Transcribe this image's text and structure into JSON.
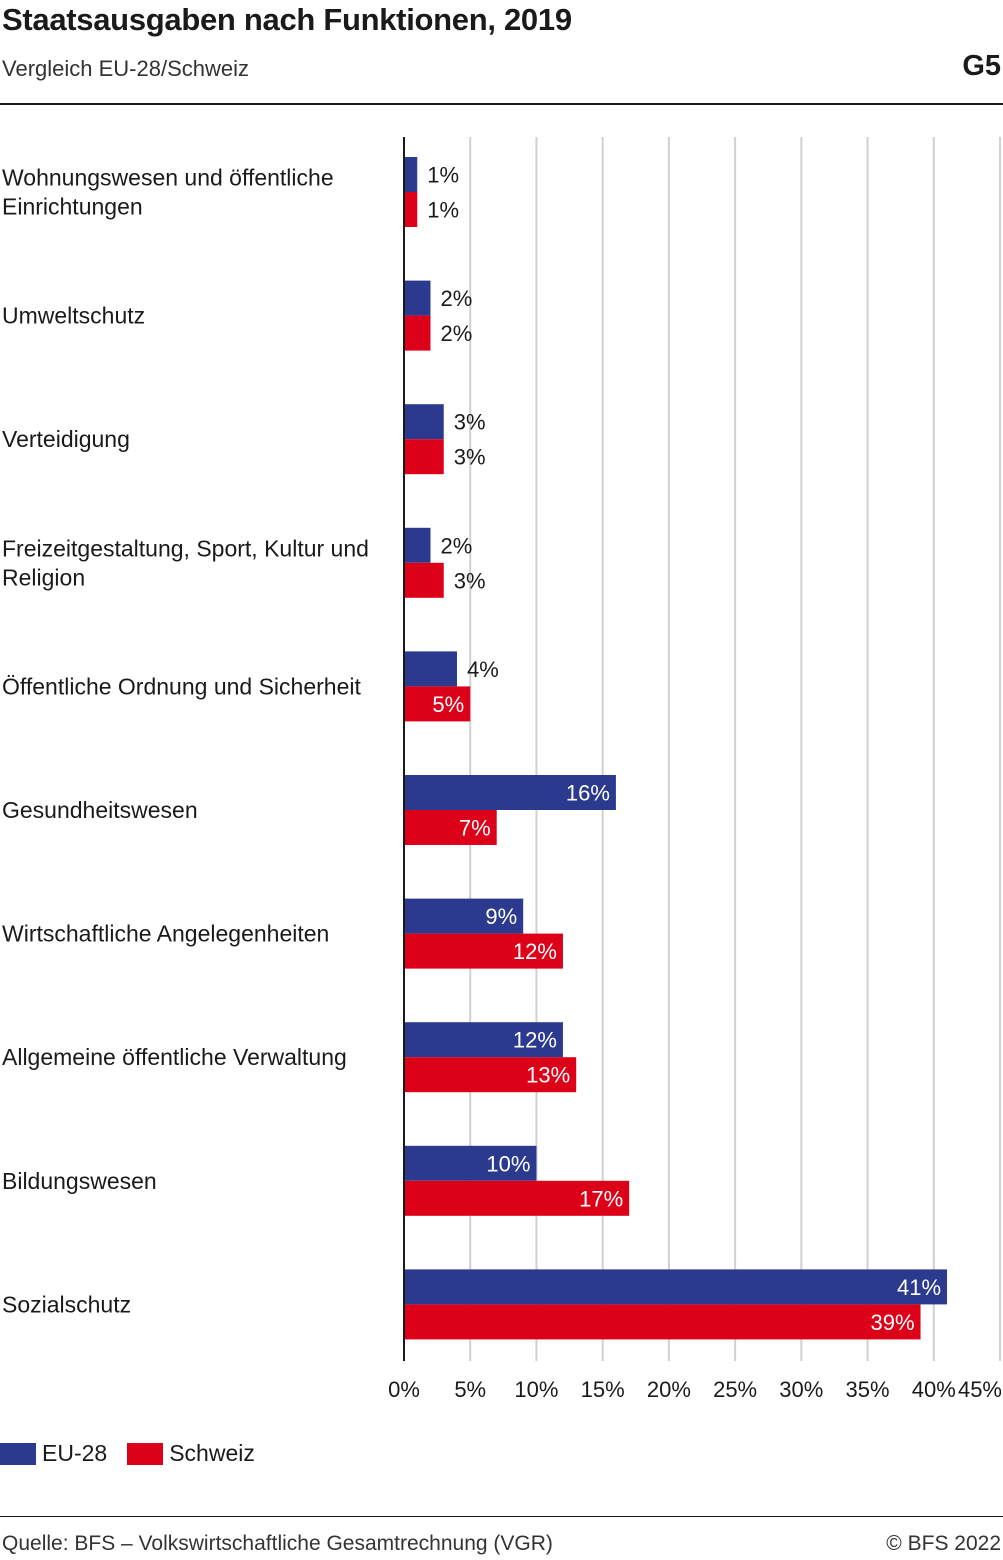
{
  "header": {
    "title": "Staatsausgaben nach Funktionen, 2019",
    "subtitle": "Vergleich EU-28/Schweiz",
    "figure_number": "G5"
  },
  "footer": {
    "source": "Quelle: BFS – Volkswirtschaftliche Gesamtrechnung (VGR)",
    "copyright": "© BFS 2022"
  },
  "colors": {
    "eu": "#2b3a8f",
    "ch": "#dc0018",
    "grid": "#d0d0d0",
    "axis": "#1a1a1a"
  },
  "chart_data": {
    "type": "bar",
    "orientation": "horizontal",
    "title": "Staatsausgaben nach Funktionen, 2019",
    "subtitle": "Vergleich EU-28/Schweiz",
    "categories": [
      [
        "Wohnungswesen und öffentliche",
        "Einrichtungen"
      ],
      [
        "Umweltschutz"
      ],
      [
        "Verteidigung"
      ],
      [
        "Freizeitgestaltung, Sport, Kultur und",
        "Religion"
      ],
      [
        "Öffentliche Ordnung und Sicherheit"
      ],
      [
        "Gesundheitswesen"
      ],
      [
        "Wirtschaftliche Angelegenheiten"
      ],
      [
        "Allgemeine öffentliche Verwaltung"
      ],
      [
        "Bildungswesen"
      ],
      [
        "Sozialschutz"
      ]
    ],
    "series": [
      {
        "name": "EU-28",
        "values": [
          1,
          2,
          3,
          2,
          4,
          16,
          9,
          12,
          10,
          41
        ],
        "labels": [
          "1%",
          "2%",
          "3%",
          "2%",
          "4%",
          "16%",
          "9%",
          "12%",
          "10%",
          "41%"
        ]
      },
      {
        "name": "Schweiz",
        "values": [
          1,
          2,
          3,
          3,
          5,
          7,
          12,
          13,
          17,
          39
        ],
        "labels": [
          "1%",
          "2%",
          "3%",
          "3%",
          "5%",
          "7%",
          "12%",
          "13%",
          "17%",
          "39%"
        ]
      }
    ],
    "xlim": [
      0,
      45
    ],
    "xticks": [
      0,
      5,
      10,
      15,
      20,
      25,
      30,
      35,
      40,
      45
    ],
    "xtick_labels": [
      "0%",
      "5%",
      "10%",
      "15%",
      "20%",
      "25%",
      "30%",
      "35%",
      "40%",
      "45%"
    ],
    "grid": "vertical",
    "legend_position": "bottom-left"
  }
}
